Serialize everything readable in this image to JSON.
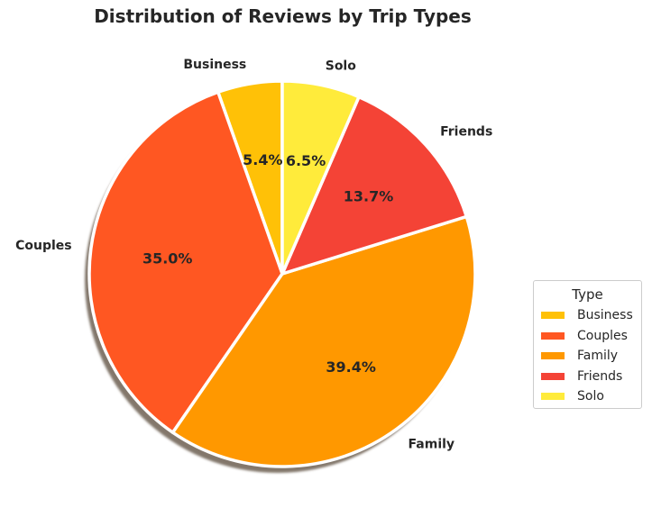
{
  "chart_data": {
    "type": "pie",
    "title": "Distribution of Reviews by Trip Types",
    "slices": [
      {
        "label": "Business",
        "value": 5.4,
        "pct_label": "5.4%",
        "color": "#FFC107"
      },
      {
        "label": "Couples",
        "value": 35.0,
        "pct_label": "35.0%",
        "color": "#FF5722"
      },
      {
        "label": "Family",
        "value": 39.4,
        "pct_label": "39.4%",
        "color": "#FF9800"
      },
      {
        "label": "Friends",
        "value": 13.7,
        "pct_label": "13.7%",
        "color": "#F44336"
      },
      {
        "label": "Solo",
        "value": 6.5,
        "pct_label": "6.5%",
        "color": "#FFEB3B"
      }
    ],
    "start_angle_deg": 90,
    "direction": "counterclockwise",
    "shadow": true,
    "legend": {
      "title": "Type",
      "placement": "center-right"
    }
  }
}
